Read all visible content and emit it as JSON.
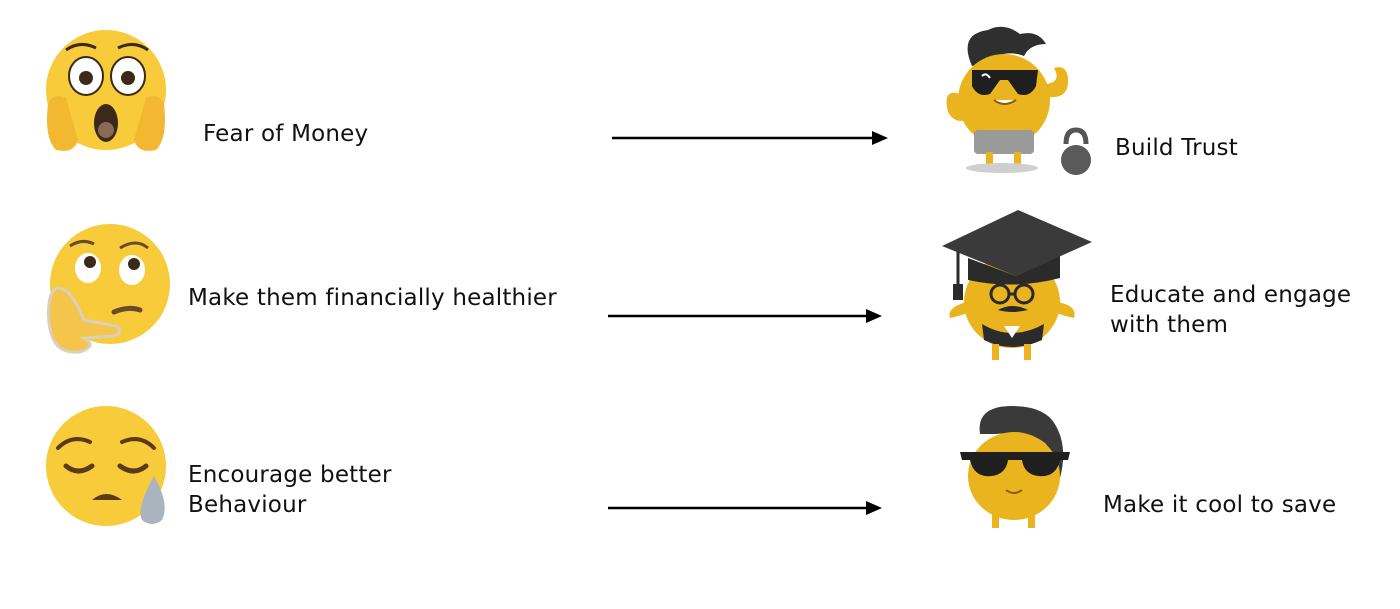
{
  "rows": [
    {
      "problem": {
        "icon": "face-screaming-in-fear-icon",
        "lines": [
          "Fear of Money"
        ]
      },
      "solution": {
        "icon": "muscle-mascot-with-kettlebell-icon",
        "lines": [
          "Build Trust"
        ]
      }
    },
    {
      "problem": {
        "icon": "thinking-face-icon",
        "lines": [
          "Make them financially healthier"
        ]
      },
      "solution": {
        "icon": "graduate-mascot-with-mortarboard-icon",
        "lines": [
          "Educate and engage",
          "with them"
        ]
      }
    },
    {
      "problem": {
        "icon": "sleepy-face-icon",
        "lines": [
          "Encourage better",
          "Behaviour"
        ]
      },
      "solution": {
        "icon": "cool-mascot-with-sunglasses-icon",
        "lines": [
          "Make it cool to save"
        ]
      }
    }
  ],
  "colors": {
    "emoji_yellow": "#F7CB3A",
    "mascot_yellow": "#E9B41E",
    "dark": "#3A3A3A",
    "arrow": "#000000"
  }
}
